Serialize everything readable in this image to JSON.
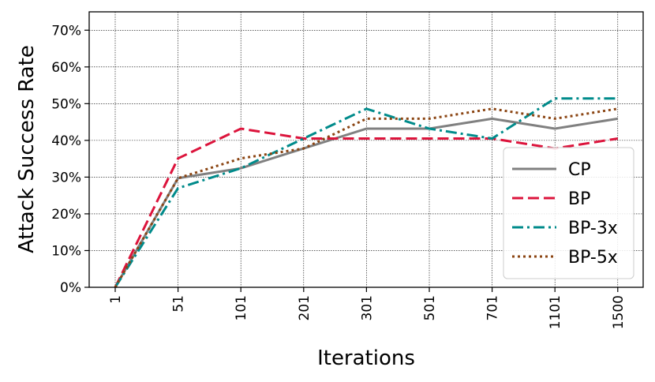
{
  "chart_data": {
    "type": "line",
    "title": "",
    "xlabel": "Iterations",
    "ylabel": "Attack Success Rate",
    "categories": [
      "1",
      "51",
      "101",
      "201",
      "301",
      "501",
      "701",
      "1101",
      "1500"
    ],
    "y_ticks": [
      "0%",
      "10%",
      "20%",
      "30%",
      "40%",
      "50%",
      "60%",
      "70%"
    ],
    "y_tick_values": [
      0,
      10,
      20,
      30,
      40,
      50,
      60,
      70
    ],
    "ylim": [
      0,
      75
    ],
    "grid": true,
    "legend_position": "lower-right",
    "series": [
      {
        "name": "CP",
        "color": "#808080",
        "dash": "solid",
        "values": [
          0,
          29.7,
          32.4,
          37.8,
          43.2,
          43.2,
          45.9,
          43.2,
          45.9
        ]
      },
      {
        "name": "BP",
        "color": "#dc143c",
        "dash": "dashed",
        "values": [
          0,
          35.1,
          43.2,
          40.5,
          40.5,
          40.5,
          40.5,
          37.8,
          40.5
        ]
      },
      {
        "name": "BP-3x",
        "color": "#008b8b",
        "dash": "dashdot",
        "values": [
          0,
          27.0,
          32.4,
          40.5,
          48.6,
          43.2,
          40.5,
          51.4,
          51.4
        ]
      },
      {
        "name": "BP-5x",
        "color": "#8b4513",
        "dash": "dotted",
        "values": [
          0,
          29.7,
          35.1,
          37.8,
          45.9,
          45.9,
          48.6,
          45.9,
          48.6
        ]
      }
    ]
  }
}
